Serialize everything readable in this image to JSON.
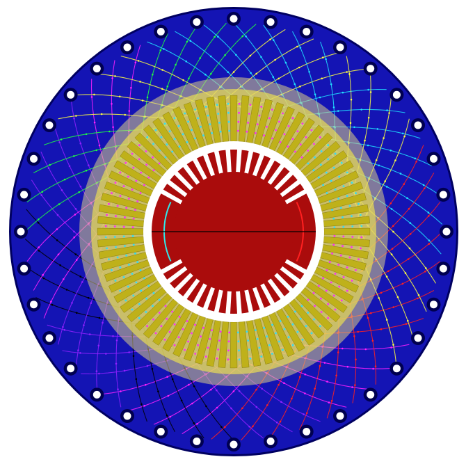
{
  "figure": {
    "kind": "electric machine cross-section (finite element mesh view)",
    "colors": {
      "background": "#ffffff",
      "outer_frame": "#1414b4",
      "frame_edge": "#000060",
      "bolt_hole": "#ffffff",
      "bolt_ring": "#000050",
      "stator_iron": "#bfb11a",
      "stator_iron_light": "#e8dc55",
      "stator_glow": "#d8cc88",
      "air_gap": "#ffffff",
      "rotor_iron": "#aa0c0c",
      "rotor_slot": "#ffffff",
      "shaft_line": "#000000",
      "field_red": "#ff2020",
      "field_magenta": "#ff20ff",
      "field_cyan": "#20e0ff",
      "field_yellow": "#ffff40",
      "field_green": "#20ff40",
      "field_purple": "#9020ff",
      "field_black": "#000000",
      "winding_cyan": "#30e8e8",
      "winding_red": "#ff2020"
    },
    "counts": {
      "bolt_holes": 36,
      "stator_slots": 72,
      "rotor_slots_per_group": 16,
      "field_lines": 44
    }
  }
}
